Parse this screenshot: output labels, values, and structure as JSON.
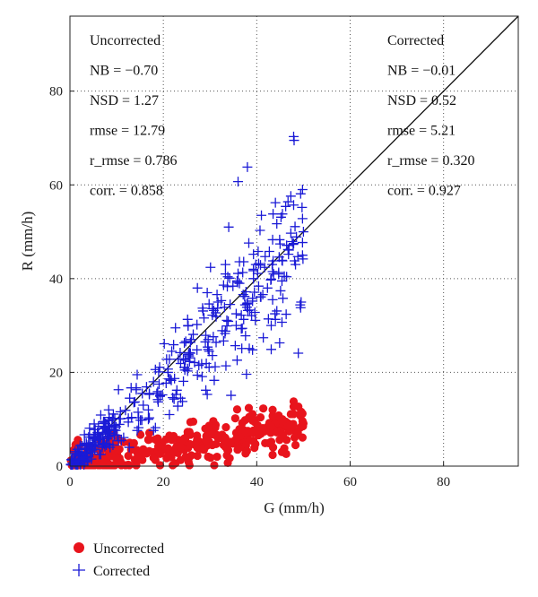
{
  "chart_data": {
    "type": "scatter",
    "xlabel": "G (mm/h)",
    "ylabel": "R (mm/h)",
    "xlim": [
      0,
      96
    ],
    "ylim": [
      0,
      96
    ],
    "x_ticks": [
      0,
      20,
      40,
      60,
      80
    ],
    "y_ticks": [
      0,
      20,
      40,
      60,
      80
    ],
    "grid": "dotted",
    "reference_line": "1:1",
    "legend_position": "below-left",
    "series": [
      {
        "name": "Uncorrected",
        "color": "#e8141c",
        "marker": "filled-circle",
        "x": [],
        "y": []
      },
      {
        "name": "Corrected",
        "color": "#1a1ad6",
        "marker": "plus",
        "x": [],
        "y": []
      }
    ],
    "stats": {
      "uncorrected": {
        "title": "Uncorrected",
        "color": "#e8141c",
        "lines": [
          "NB = −0.70",
          "NSD = 1.27",
          "rmse = 12.79",
          "r_rmse = 0.786",
          "corr. = 0.858"
        ]
      },
      "corrected": {
        "title": "Corrected",
        "color": "#1a1ad6",
        "lines": [
          "NB = −0.01",
          "NSD = 0.52",
          "rmse = 5.21",
          "r_rmse = 0.320",
          "corr. = 0.927"
        ]
      }
    }
  }
}
